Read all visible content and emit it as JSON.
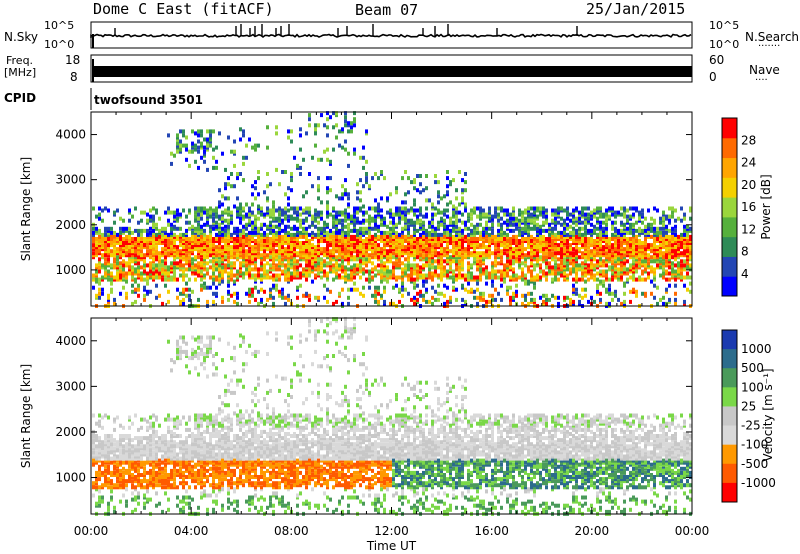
{
  "header": {
    "station": "Dome C East (fitACF)",
    "beam": "Beam 07",
    "date": "25/Jan/2015"
  },
  "noise": {
    "left_label": "N.Sky",
    "right_label": "N.Search",
    "right_dots": "·······",
    "scale_top": "10^5",
    "scale_bottom": "10^0"
  },
  "freq": {
    "label_top": "Freq.",
    "label_unit": "[MHz]",
    "left_ticks": [
      "18",
      "8"
    ],
    "right_ticks": [
      "60",
      "0"
    ],
    "right_label": "Nave",
    "right_dots": "····"
  },
  "cpid": {
    "label": "CPID",
    "value": "twofsound 3501"
  },
  "colors": {
    "power": [
      "#0000ff",
      "#2346b4",
      "#2e8b57",
      "#55b03c",
      "#9ad63c",
      "#f4d000",
      "#ffa500",
      "#ff6a00",
      "#ff0000"
    ],
    "velocity": [
      "#ff0000",
      "#ff5a00",
      "#ff9900",
      "#d9d9d9",
      "#c8c8c8",
      "#7ad848",
      "#4a9a5a",
      "#2c6c8c",
      "#1a3ab0"
    ]
  },
  "chart_data": [
    {
      "type": "heatmap",
      "name_of_quantity": "Power",
      "ylabel": "Slant Range [km]",
      "ylim": [
        200,
        4500
      ],
      "yticks": [
        "1000",
        "2000",
        "3000",
        "4000"
      ],
      "colorbar_label": "Power [dB]",
      "colorbar_ticks": [
        "4",
        "8",
        "12",
        "16",
        "20",
        "24",
        "28"
      ],
      "colorbar_range": [
        0,
        32
      ]
    },
    {
      "type": "heatmap",
      "name_of_quantity": "Velocity",
      "ylabel": "Slant Range [km]",
      "ylim": [
        200,
        4500
      ],
      "yticks": [
        "1000",
        "2000",
        "3000",
        "4000"
      ],
      "colorbar_label": "Velocity [m s⁻¹]",
      "colorbar_ticks": [
        "1000",
        "500",
        "100",
        "25",
        "-25",
        "-100",
        "-500",
        "-1000"
      ],
      "xlabel": "Time UT",
      "xticks": [
        "00:00",
        "04:00",
        "08:00",
        "12:00",
        "16:00",
        "20:00",
        "00:00"
      ],
      "xlim_hours": [
        0,
        24
      ]
    }
  ]
}
